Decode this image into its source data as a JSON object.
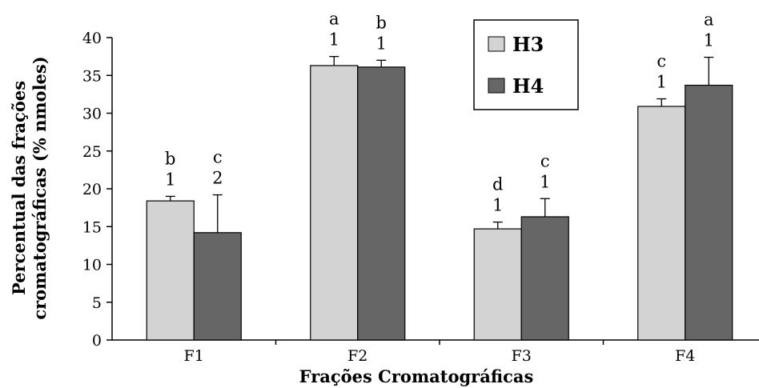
{
  "chart_data": {
    "type": "bar",
    "categories": [
      "F1",
      "F2",
      "F3",
      "F4"
    ],
    "series": [
      {
        "name": "H3",
        "values": [
          18.4,
          36.3,
          14.7,
          30.9
        ],
        "errors": [
          0.6,
          1.2,
          0.9,
          1.0
        ],
        "letters": [
          "b",
          "a",
          "d",
          "c"
        ],
        "numbers": [
          "1",
          "1",
          "1",
          "1"
        ],
        "color": "#d3d3d3"
      },
      {
        "name": "H4",
        "values": [
          14.2,
          36.1,
          16.3,
          33.7
        ],
        "errors": [
          5.0,
          0.9,
          2.4,
          3.7
        ],
        "letters": [
          "c",
          "b",
          "c",
          "a"
        ],
        "numbers": [
          "2",
          "1",
          "1",
          "1"
        ],
        "color": "#666666"
      }
    ],
    "ylim": [
      0,
      40
    ],
    "yticks": [
      "0",
      "5",
      "10",
      "15",
      "20",
      "25",
      "30",
      "35",
      "40"
    ],
    "xlabel": "Frações Cromatográficas",
    "ylabel_lines": [
      "Percentual das frações",
      "cromatográficas (% nmoles)"
    ],
    "grid": false,
    "legend_position": "top-center"
  }
}
